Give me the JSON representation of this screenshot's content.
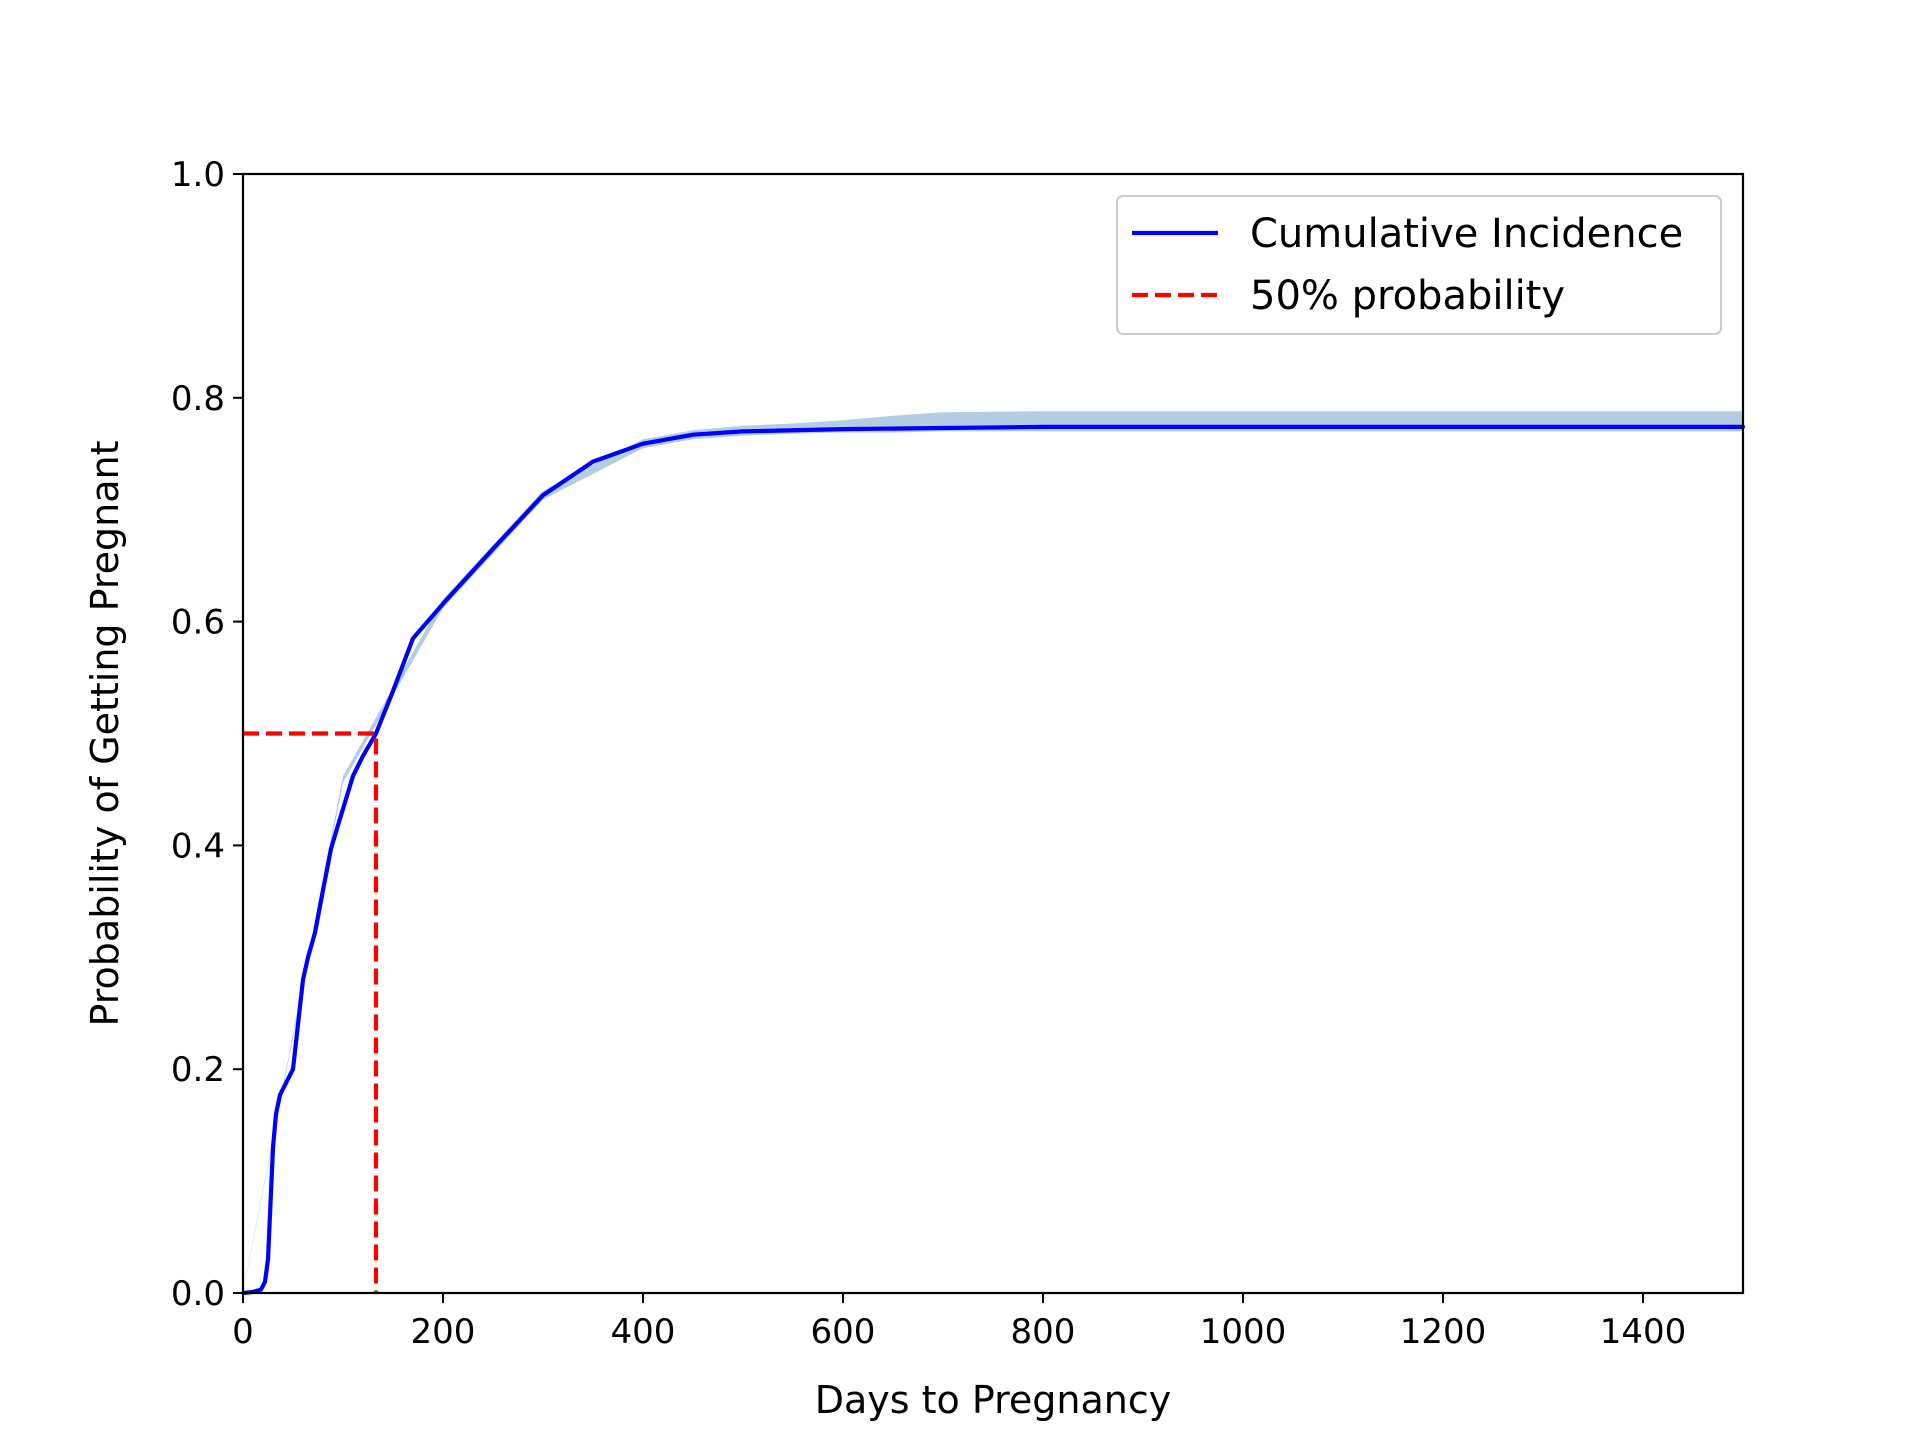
{
  "chart_data": {
    "type": "line",
    "title": "",
    "xlabel": "Days to Pregnancy",
    "ylabel": "Probability of Getting Pregnant",
    "xlim": [
      0,
      1500
    ],
    "ylim": [
      0,
      1.0
    ],
    "xticks": [
      0,
      200,
      400,
      600,
      800,
      1000,
      1200,
      1400
    ],
    "xtick_labels": [
      "0",
      "200",
      "400",
      "600",
      "800",
      "1000",
      "1200",
      "1400"
    ],
    "yticks": [
      0,
      0.2,
      0.4,
      0.6,
      0.8,
      1.0
    ],
    "ytick_labels": [
      "0.0",
      "0.2",
      "0.4",
      "0.6",
      "0.8",
      "1.0"
    ],
    "grid": false,
    "legend_position": "top-right",
    "series": [
      {
        "name": "Cumulative Incidence",
        "style": "solid",
        "color": "#0000ff",
        "x": [
          0,
          10,
          18,
          22,
          25,
          28,
          30,
          33,
          37,
          42,
          50,
          55,
          60,
          65,
          72,
          80,
          88,
          95,
          110,
          120,
          133,
          150,
          170,
          200,
          250,
          300,
          350,
          400,
          450,
          500,
          600,
          700,
          800,
          1000,
          1200,
          1500
        ],
        "y": [
          0,
          0.001,
          0.003,
          0.01,
          0.03,
          0.09,
          0.13,
          0.16,
          0.177,
          0.186,
          0.2,
          0.24,
          0.28,
          0.3,
          0.322,
          0.36,
          0.397,
          0.418,
          0.462,
          0.48,
          0.5,
          0.538,
          0.585,
          0.616,
          0.665,
          0.713,
          0.743,
          0.759,
          0.767,
          0.77,
          0.772,
          0.773,
          0.774,
          0.774,
          0.774,
          0.774
        ]
      },
      {
        "name": "50% probability",
        "style": "dashed",
        "color": "#ff0000",
        "x": [
          0,
          133,
          133
        ],
        "y": [
          0.5,
          0.5,
          0
        ]
      }
    ],
    "confidence_band": {
      "color": "#b3cde3",
      "x": [
        0,
        100,
        200,
        300,
        400,
        450,
        500,
        550,
        600,
        650,
        700,
        800,
        1000,
        1200,
        1500
      ],
      "lower": [
        0,
        0.456,
        0.612,
        0.709,
        0.755,
        0.763,
        0.766,
        0.768,
        0.769,
        0.769,
        0.77,
        0.77,
        0.77,
        0.77,
        0.77
      ],
      "upper": [
        0.001,
        0.462,
        0.62,
        0.717,
        0.763,
        0.771,
        0.775,
        0.777,
        0.78,
        0.784,
        0.787,
        0.788,
        0.788,
        0.788,
        0.788
      ]
    }
  }
}
